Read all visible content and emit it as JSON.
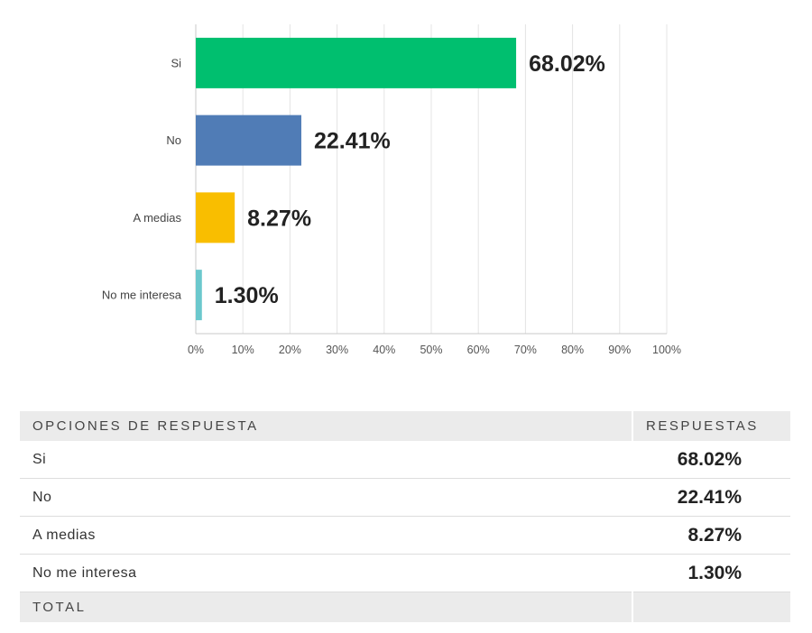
{
  "chart_data": {
    "type": "bar",
    "orientation": "horizontal",
    "categories": [
      "Si",
      "No",
      "A medias",
      "No me interesa"
    ],
    "values": [
      68.02,
      22.41,
      8.27,
      1.3
    ],
    "value_labels": [
      "68.02%",
      "22.41%",
      "8.27%",
      "1.30%"
    ],
    "colors": [
      "#00bf6f",
      "#507cb6",
      "#f9be00",
      "#6bc8cd"
    ],
    "xlim": [
      0,
      100
    ],
    "xticks": [
      "0%",
      "10%",
      "20%",
      "30%",
      "40%",
      "50%",
      "60%",
      "70%",
      "80%",
      "90%",
      "100%"
    ],
    "grid": true,
    "title": "",
    "xlabel": "",
    "ylabel": ""
  },
  "table": {
    "header": {
      "col1": "OPCIONES DE RESPUESTA",
      "col2": "RESPUESTAS"
    },
    "rows": [
      {
        "label": "Si",
        "value": "68.02%"
      },
      {
        "label": "No",
        "value": "22.41%"
      },
      {
        "label": "A medias",
        "value": "8.27%"
      },
      {
        "label": "No me interesa",
        "value": "1.30%"
      }
    ],
    "total_label": "TOTAL"
  }
}
